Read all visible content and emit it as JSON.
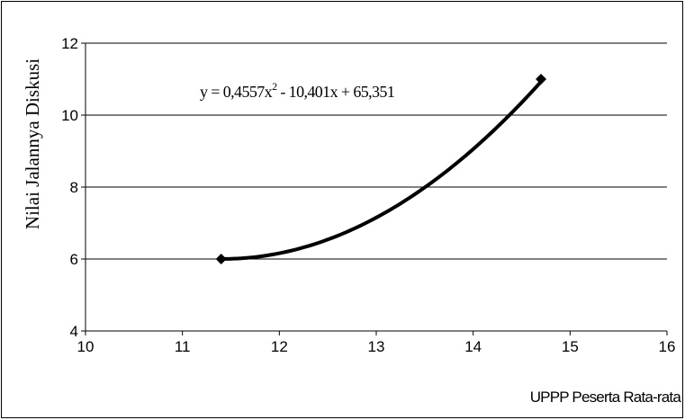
{
  "chart_data": {
    "type": "scatter",
    "title": "",
    "xlabel": "UPPP Peserta Rata-rata",
    "ylabel": "Nilai Jalannya Diskusi",
    "xlim": [
      10,
      16
    ],
    "ylim": [
      4,
      12
    ],
    "xticks": [
      10,
      11,
      12,
      13,
      14,
      15,
      16
    ],
    "yticks": [
      4,
      6,
      8,
      10,
      12
    ],
    "grid": "horizontal",
    "series": [
      {
        "points": [
          {
            "x": 11.4,
            "y": 6
          },
          {
            "x": 14.7,
            "y": 11
          }
        ],
        "marker": "diamond",
        "color": "#000000"
      }
    ],
    "trendline": {
      "type": "polynomial",
      "coefficients": [
        0.4557,
        -10.401,
        65.351
      ],
      "x_range": [
        11.4,
        14.7
      ],
      "equation": {
        "prefix": "y = 0,4557x",
        "power": "2",
        "suffix": " - 10,401x + 65,351"
      }
    }
  }
}
